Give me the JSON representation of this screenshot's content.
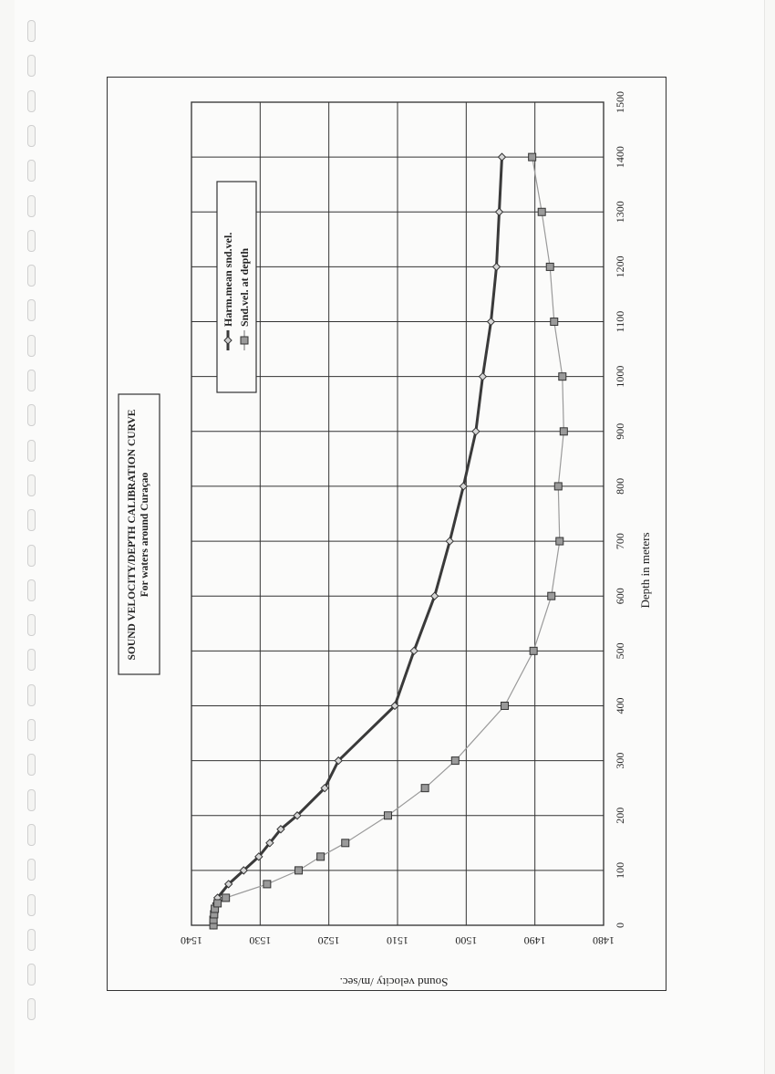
{
  "chart_data": {
    "type": "line",
    "title": "SOUND VELOCITY/DEPTH  CALIBRATION CURVE",
    "subtitle": "For waters around Curaçao",
    "xlabel": "Depth in meters",
    "ylabel": "Sound velocity /m/sec.",
    "xlim": [
      0,
      1500
    ],
    "ylim": [
      1480,
      1540
    ],
    "x_ticks": [
      "0",
      "100",
      "200",
      "300",
      "400",
      "500",
      "600",
      "700",
      "800",
      "900",
      "1000",
      "1100",
      "1200",
      "1300",
      "1400",
      "1500"
    ],
    "y_ticks": [
      "1480",
      "1490",
      "1500",
      "1510",
      "1520",
      "1530",
      "1540"
    ],
    "grid": true,
    "orientation": "rotated 90 degrees clockwise on the page",
    "legend_placement": "top-left",
    "series": [
      {
        "name": "Harm.mean snd.vel.",
        "marker": "diamond",
        "color": "#3a3a3a",
        "points": [
          [
            0,
            1536.8
          ],
          [
            10,
            1536.8
          ],
          [
            20,
            1536.7
          ],
          [
            30,
            1536.6
          ],
          [
            40,
            1536.4
          ],
          [
            50,
            1536.2
          ],
          [
            75,
            1534.6
          ],
          [
            100,
            1532.4
          ],
          [
            125,
            1530.2
          ],
          [
            150,
            1528.6
          ],
          [
            175,
            1527.0
          ],
          [
            200,
            1524.6
          ],
          [
            250,
            1520.6
          ],
          [
            300,
            1518.6
          ],
          [
            400,
            1510.4
          ],
          [
            500,
            1507.6
          ],
          [
            600,
            1504.6
          ],
          [
            700,
            1502.4
          ],
          [
            800,
            1500.4
          ],
          [
            900,
            1498.6
          ],
          [
            1000,
            1497.6
          ],
          [
            1100,
            1496.4
          ],
          [
            1200,
            1495.6
          ],
          [
            1300,
            1495.2
          ],
          [
            1400,
            1494.8
          ]
        ]
      },
      {
        "name": "Snd.vel. at depth",
        "marker": "square",
        "color": "#9a9a9a",
        "points": [
          [
            0,
            1536.8
          ],
          [
            10,
            1536.8
          ],
          [
            20,
            1536.7
          ],
          [
            30,
            1536.6
          ],
          [
            40,
            1536.2
          ],
          [
            50,
            1535.0
          ],
          [
            75,
            1529.0
          ],
          [
            100,
            1524.4
          ],
          [
            125,
            1521.2
          ],
          [
            150,
            1517.6
          ],
          [
            200,
            1511.4
          ],
          [
            250,
            1506.0
          ],
          [
            300,
            1501.6
          ],
          [
            400,
            1494.4
          ],
          [
            500,
            1490.2
          ],
          [
            600,
            1487.6
          ],
          [
            700,
            1486.4
          ],
          [
            800,
            1486.6
          ],
          [
            900,
            1485.8
          ],
          [
            1000,
            1486.0
          ],
          [
            1100,
            1487.2
          ],
          [
            1200,
            1487.8
          ],
          [
            1300,
            1489.0
          ],
          [
            1400,
            1490.4
          ]
        ]
      }
    ]
  }
}
